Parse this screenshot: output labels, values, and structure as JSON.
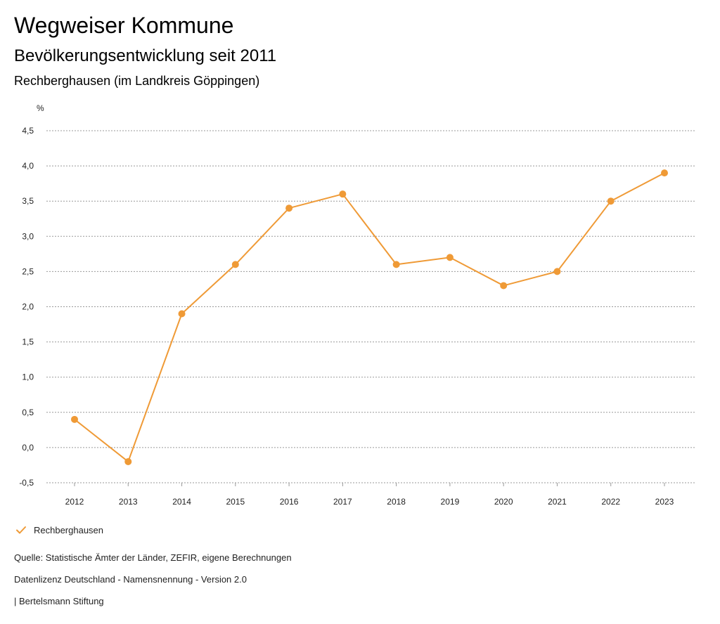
{
  "header": {
    "title": "Wegweiser Kommune",
    "subtitle": "Bevölkerungsentwicklung seit 2011",
    "region": "Rechberghausen (im Landkreis Göppingen)"
  },
  "colors": {
    "series": "#EF9A36",
    "grid": "#999999",
    "text": "#222222"
  },
  "chart_data": {
    "type": "line",
    "title": "Bevölkerungsentwicklung seit 2011",
    "xlabel": "",
    "ylabel": "%",
    "ylim": [
      -0.5,
      4.5
    ],
    "yticks": [
      -0.5,
      0.0,
      0.5,
      1.0,
      1.5,
      2.0,
      2.5,
      3.0,
      3.5,
      4.0,
      4.5
    ],
    "ytick_labels": [
      "-0,5",
      "0,0",
      "0,5",
      "1,0",
      "1,5",
      "2,0",
      "2,5",
      "3,0",
      "3,5",
      "4,0",
      "4,5"
    ],
    "categories": [
      "2012",
      "2013",
      "2014",
      "2015",
      "2016",
      "2017",
      "2018",
      "2019",
      "2020",
      "2021",
      "2022",
      "2023"
    ],
    "series": [
      {
        "name": "Rechberghausen",
        "values": [
          0.4,
          -0.2,
          1.9,
          2.6,
          3.4,
          3.6,
          2.6,
          2.7,
          2.3,
          2.5,
          3.5,
          3.9
        ]
      }
    ],
    "grid": true,
    "legend_position": "bottom-left"
  },
  "legend": {
    "label": "Rechberghausen",
    "icon": "check-icon"
  },
  "footer": {
    "source": "Quelle: Statistische Ämter der Länder, ZEFIR, eigene Berechnungen",
    "license": "Datenlizenz Deutschland - Namensnennung - Version 2.0",
    "brand": "| Bertelsmann Stiftung"
  }
}
